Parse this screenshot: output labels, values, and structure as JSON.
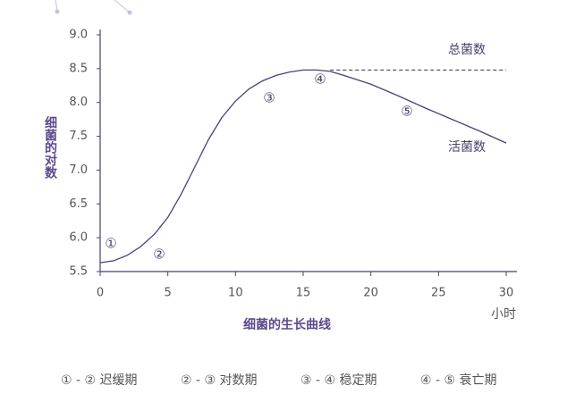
{
  "chart_data": {
    "type": "line",
    "title": "细菌的生长曲线",
    "y_label": "细菌的对数",
    "x_label": "小时",
    "xlim": [
      0,
      30
    ],
    "ylim": [
      5.5,
      9.0
    ],
    "xticks": [
      0,
      5,
      10,
      15,
      20,
      25,
      30
    ],
    "yticks": [
      {
        "value": 5.5,
        "label": "5.5"
      },
      {
        "value": 6,
        "label": "6.0"
      },
      {
        "value": 6.5,
        "label": "6.5"
      },
      {
        "value": 7,
        "label": "7.0"
      },
      {
        "value": 7.5,
        "label": "7.5"
      },
      {
        "value": 8,
        "label": "8.0"
      },
      {
        "value": 8.5,
        "label": "8.5"
      },
      {
        "value": 9,
        "label": "9.0"
      }
    ],
    "series": [
      {
        "name": "活菌数",
        "color": "#4a3f7a",
        "dashed": false,
        "x": [
          0,
          1,
          2,
          3,
          4,
          5,
          6,
          7,
          8,
          9,
          10,
          11,
          12,
          13,
          14,
          15,
          16,
          17,
          18,
          20,
          22,
          24,
          26,
          28,
          30
        ],
        "values": [
          5.63,
          5.66,
          5.74,
          5.87,
          6.05,
          6.3,
          6.65,
          7.05,
          7.45,
          7.78,
          8.02,
          8.2,
          8.32,
          8.4,
          8.45,
          8.48,
          8.48,
          8.46,
          8.4,
          8.27,
          8.1,
          7.92,
          7.75,
          7.58,
          7.4
        ]
      },
      {
        "name": "总菌数",
        "color": "#333333",
        "dashed": true,
        "x": [
          17,
          30
        ],
        "values": [
          8.48,
          8.48
        ]
      }
    ],
    "annotations": [
      "①",
      "②",
      "③",
      "④",
      "⑤"
    ],
    "stages": [
      "① - ② 迟缓期",
      "② - ③ 对数期",
      "③ - ④ 稳定期",
      "④ - ⑤ 衰亡期"
    ]
  }
}
